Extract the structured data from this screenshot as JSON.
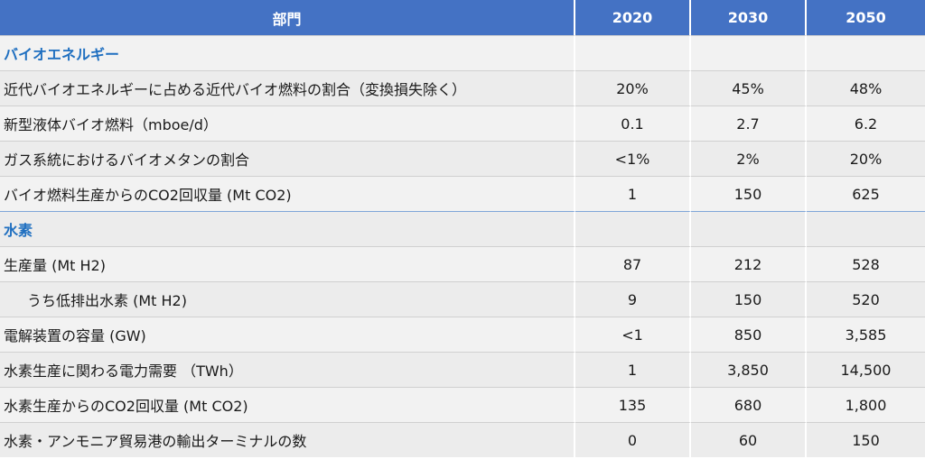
{
  "header": {
    "sector": "部門",
    "years": [
      "2020",
      "2030",
      "2050"
    ]
  },
  "sections": [
    {
      "title": "バイオエネルギー",
      "rows": [
        {
          "label": "近代バイオエネルギーに占める近代バイオ燃料の割合（変換損失除く）",
          "values": [
            "20%",
            "45%",
            "48%"
          ]
        },
        {
          "label": "新型液体バイオ燃料（mboe/d）",
          "values": [
            "0.1",
            "2.7",
            "6.2"
          ]
        },
        {
          "label": "ガス系統におけるバイオメタンの割合",
          "values": [
            "<1%",
            "2%",
            "20%"
          ]
        },
        {
          "label": "バイオ燃料生産からのCO2回収量 (Mt CO2)",
          "values": [
            "1",
            "150",
            "625"
          ]
        }
      ]
    },
    {
      "title": "水素",
      "rows": [
        {
          "label": "生産量 (Mt H2)",
          "values": [
            "87",
            "212",
            "528"
          ]
        },
        {
          "label": "うち低排出水素 (Mt H2)",
          "values": [
            "9",
            "150",
            "520"
          ],
          "indent": true
        },
        {
          "label": "電解装置の容量 (GW)",
          "values": [
            "<1",
            "850",
            "3,585"
          ]
        },
        {
          "label": "水素生産に関わる電力需要 （TWh）",
          "values": [
            "1",
            "3,850",
            "14,500"
          ]
        },
        {
          "label": "水素生産からのCO2回収量 (Mt CO2)",
          "values": [
            "135",
            "680",
            "1,800"
          ]
        },
        {
          "label": "水素・アンモニア貿易港の輸出ターミナルの数",
          "values": [
            "0",
            "60",
            "150"
          ]
        }
      ]
    }
  ]
}
